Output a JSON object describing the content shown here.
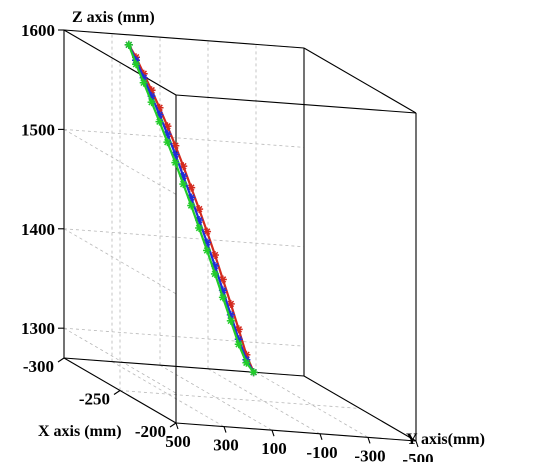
{
  "chart_data": {
    "type": "line",
    "projection": "3d",
    "zlabel": "Z axis (mm)",
    "xlabel": "X axis (mm)",
    "ylabel": "Y axis(mm)",
    "z_ticks": [
      "1600",
      "1500",
      "1400",
      "1300"
    ],
    "x_ticks": [
      "-300",
      "-250",
      "-200"
    ],
    "y_ticks": [
      "500",
      "300",
      "100",
      "-100",
      "-300",
      "-500"
    ],
    "xlim": [
      -300,
      -200
    ],
    "ylim": [
      -500,
      500
    ],
    "zlim": [
      1270,
      1600
    ],
    "grid": true,
    "marker": "asterisk",
    "colors": {
      "red": "#d42a1e",
      "blue": "#1f2fd8",
      "green": "#22cc2a"
    },
    "series": [
      {
        "color": "#d42a1e",
        "points": [
          {
            "x": -300,
            "y": 230,
            "z": 1590
          },
          {
            "x": -300,
            "y": 200,
            "z": 1578
          },
          {
            "x": -300,
            "y": 168,
            "z": 1562
          },
          {
            "x": -300,
            "y": 135,
            "z": 1546
          },
          {
            "x": -300,
            "y": 102,
            "z": 1529
          },
          {
            "x": -300,
            "y": 69,
            "z": 1511
          },
          {
            "x": -300,
            "y": 36,
            "z": 1492
          },
          {
            "x": -300,
            "y": 3,
            "z": 1472
          },
          {
            "x": -300,
            "y": -30,
            "z": 1451
          },
          {
            "x": -300,
            "y": -63,
            "z": 1430
          },
          {
            "x": -300,
            "y": -96,
            "z": 1408
          },
          {
            "x": -300,
            "y": -129,
            "z": 1385
          },
          {
            "x": -300,
            "y": -162,
            "z": 1361
          },
          {
            "x": -300,
            "y": -195,
            "z": 1337
          },
          {
            "x": -300,
            "y": -228,
            "z": 1312
          },
          {
            "x": -300,
            "y": -260,
            "z": 1287
          },
          {
            "x": -300,
            "y": -290,
            "z": 1270
          }
        ]
      },
      {
        "color": "#1f2fd8",
        "points": [
          {
            "x": -300,
            "y": 230,
            "z": 1590
          },
          {
            "x": -300,
            "y": 200,
            "z": 1575
          },
          {
            "x": -300,
            "y": 168,
            "z": 1558
          },
          {
            "x": -300,
            "y": 135,
            "z": 1540
          },
          {
            "x": -300,
            "y": 102,
            "z": 1522
          },
          {
            "x": -300,
            "y": 69,
            "z": 1503
          },
          {
            "x": -300,
            "y": 36,
            "z": 1483
          },
          {
            "x": -300,
            "y": 3,
            "z": 1462
          },
          {
            "x": -300,
            "y": -30,
            "z": 1441
          },
          {
            "x": -300,
            "y": -63,
            "z": 1419
          },
          {
            "x": -300,
            "y": -96,
            "z": 1397
          },
          {
            "x": -300,
            "y": -129,
            "z": 1374
          },
          {
            "x": -300,
            "y": -162,
            "z": 1350
          },
          {
            "x": -300,
            "y": -195,
            "z": 1326
          },
          {
            "x": -300,
            "y": -228,
            "z": 1302
          },
          {
            "x": -300,
            "y": -260,
            "z": 1282
          },
          {
            "x": -300,
            "y": -290,
            "z": 1270
          }
        ]
      },
      {
        "color": "#22cc2a",
        "points": [
          {
            "x": -300,
            "y": 230,
            "z": 1590
          },
          {
            "x": -300,
            "y": 200,
            "z": 1571
          },
          {
            "x": -300,
            "y": 168,
            "z": 1553
          },
          {
            "x": -300,
            "y": 135,
            "z": 1534
          },
          {
            "x": -300,
            "y": 102,
            "z": 1515
          },
          {
            "x": -300,
            "y": 69,
            "z": 1495
          },
          {
            "x": -300,
            "y": 36,
            "z": 1475
          },
          {
            "x": -300,
            "y": 3,
            "z": 1454
          },
          {
            "x": -300,
            "y": -30,
            "z": 1433
          },
          {
            "x": -300,
            "y": -63,
            "z": 1411
          },
          {
            "x": -300,
            "y": -96,
            "z": 1389
          },
          {
            "x": -300,
            "y": -129,
            "z": 1366
          },
          {
            "x": -300,
            "y": -162,
            "z": 1343
          },
          {
            "x": -300,
            "y": -195,
            "z": 1320
          },
          {
            "x": -300,
            "y": -228,
            "z": 1297
          },
          {
            "x": -300,
            "y": -260,
            "z": 1279
          },
          {
            "x": -300,
            "y": -290,
            "z": 1270
          }
        ]
      }
    ]
  }
}
